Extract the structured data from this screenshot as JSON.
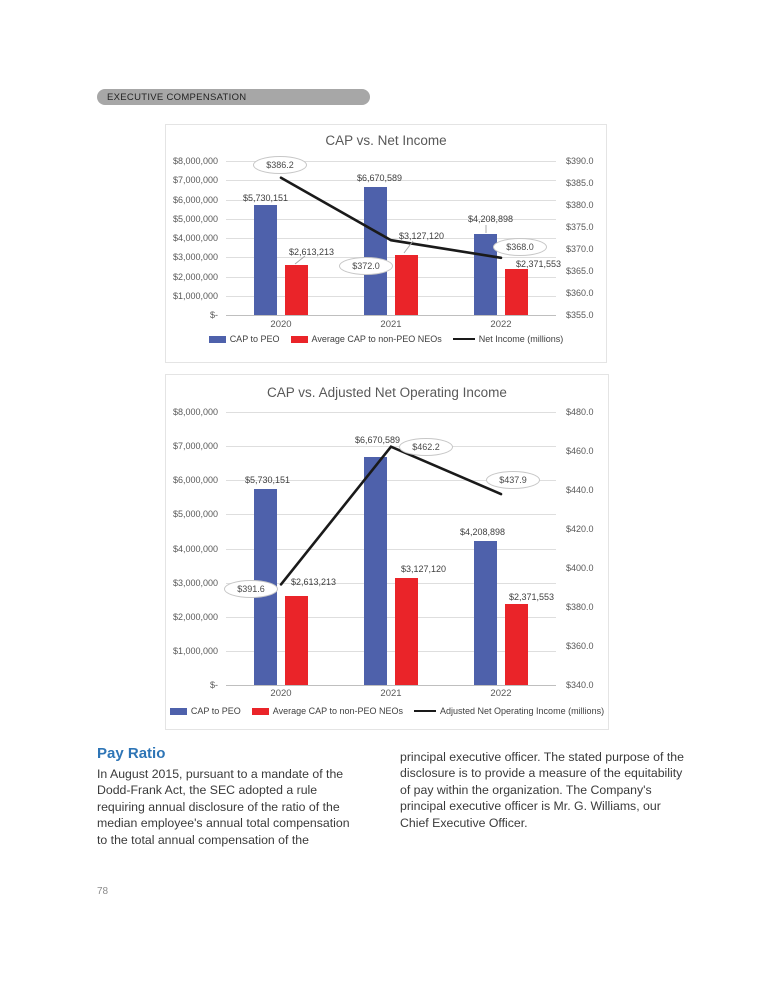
{
  "header": {
    "tag": "EXECUTIVE COMPENSATION"
  },
  "chart_data": [
    {
      "type": "bar+line",
      "title": "CAP vs. Net Income",
      "categories": [
        "2020",
        "2021",
        "2022"
      ],
      "series": [
        {
          "name": "CAP to PEO",
          "type": "bar",
          "color": "#4e61ab",
          "axis": "left",
          "values": [
            5730151,
            6670589,
            4208898
          ],
          "labels": [
            "$5,730,151",
            "$6,670,589",
            "$4,208,898"
          ]
        },
        {
          "name": "Average CAP to non-PEO NEOs",
          "type": "bar",
          "color": "#ea2429",
          "axis": "left",
          "values": [
            2613213,
            3127120,
            2371553
          ],
          "labels": [
            "$2,613,213",
            "$3,127,120",
            "$2,371,553"
          ]
        },
        {
          "name": "Net Income (millions)",
          "type": "line",
          "color": "#1a1a1a",
          "axis": "right",
          "values": [
            386.2,
            372.0,
            368.0
          ],
          "labels": [
            "$386.2",
            "$372.0",
            "$368.0"
          ]
        }
      ],
      "left_axis": {
        "max": 8000000,
        "min": 0,
        "ticks": [
          "$8,000,000",
          "$7,000,000",
          "$6,000,000",
          "$5,000,000",
          "$4,000,000",
          "$3,000,000",
          "$2,000,000",
          "$1,000,000",
          "$-"
        ]
      },
      "right_axis": {
        "max": 390,
        "min": 355,
        "ticks": [
          "$390.0",
          "$385.0",
          "$380.0",
          "$375.0",
          "$370.0",
          "$365.0",
          "$360.0",
          "$355.0"
        ]
      },
      "legend_position": "bottom",
      "grid": true
    },
    {
      "type": "bar+line",
      "title": "CAP vs. Adjusted Net Operating Income",
      "categories": [
        "2020",
        "2021",
        "2022"
      ],
      "series": [
        {
          "name": "CAP to PEO",
          "type": "bar",
          "color": "#4e61ab",
          "axis": "left",
          "values": [
            5730151,
            6670589,
            4208898
          ],
          "labels": [
            "$5,730,151",
            "$6,670,589",
            "$4,208,898"
          ]
        },
        {
          "name": "Average CAP to non-PEO NEOs",
          "type": "bar",
          "color": "#ea2429",
          "axis": "left",
          "values": [
            2613213,
            3127120,
            2371553
          ],
          "labels": [
            "$2,613,213",
            "$3,127,120",
            "$2,371,553"
          ]
        },
        {
          "name": "Adjusted Net Operating Income (millions)",
          "type": "line",
          "color": "#1a1a1a",
          "axis": "right",
          "values": [
            391.6,
            462.2,
            437.9
          ],
          "labels": [
            "$391.6",
            "$462.2",
            "$437.9"
          ]
        }
      ],
      "left_axis": {
        "max": 8000000,
        "min": 0,
        "ticks": [
          "$8,000,000",
          "$7,000,000",
          "$6,000,000",
          "$5,000,000",
          "$4,000,000",
          "$3,000,000",
          "$2,000,000",
          "$1,000,000",
          "$-"
        ]
      },
      "right_axis": {
        "max": 480,
        "min": 340,
        "ticks": [
          "$480.0",
          "$460.0",
          "$440.0",
          "$420.0",
          "$400.0",
          "$380.0",
          "$360.0",
          "$340.0"
        ]
      },
      "legend_position": "bottom",
      "grid": true
    }
  ],
  "pay_ratio": {
    "heading": "Pay Ratio",
    "col1": "In August 2015, pursuant to a mandate of the Dodd-Frank Act, the SEC adopted a rule requiring annual disclosure of the ratio of the median employee's annual total compensation to the total annual compensation of the",
    "col2": "principal executive officer. The stated purpose of the disclosure is to provide a measure of the equitability of pay within the organization. The Company's principal executive officer is Mr. G. Williams, our Chief Executive Officer."
  },
  "page": {
    "number": "78"
  }
}
